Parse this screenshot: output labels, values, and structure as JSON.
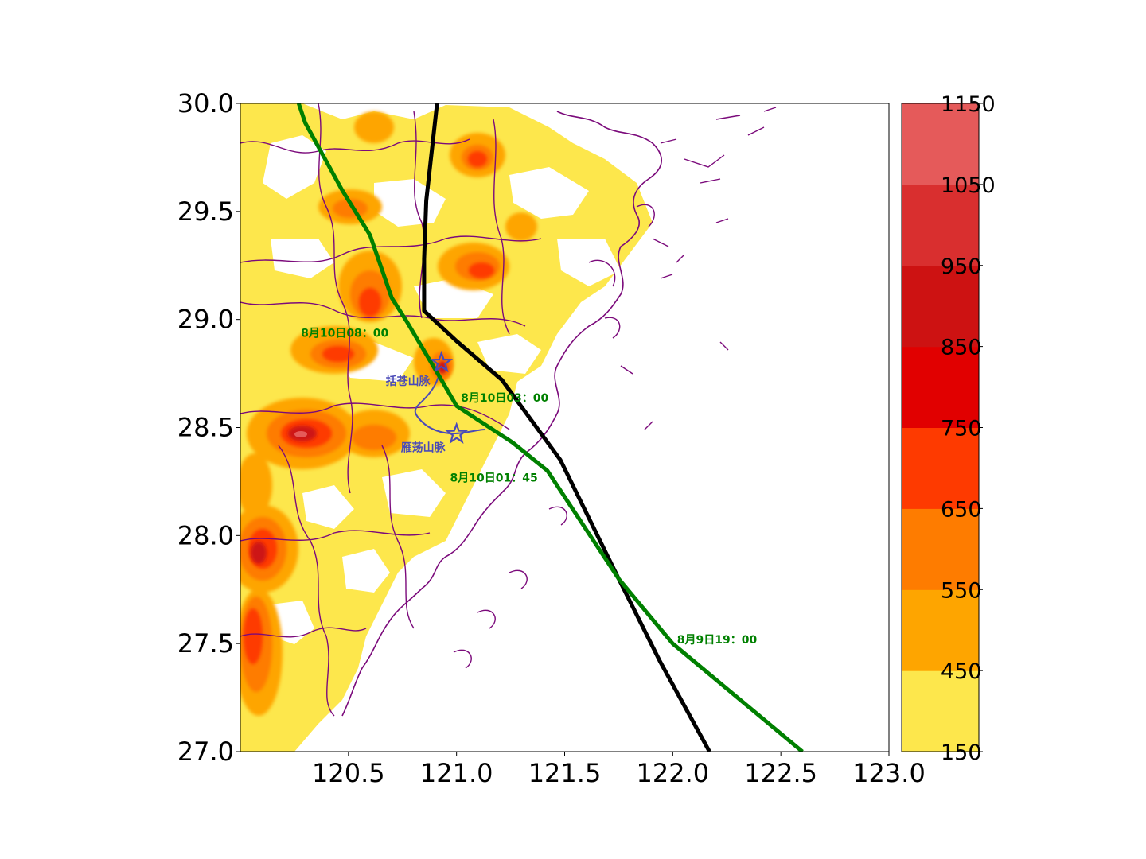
{
  "map": {
    "extent": {
      "lon": [
        120.0,
        123.0
      ],
      "lat": [
        27.0,
        30.0
      ]
    },
    "x_ticks": [
      "120.5",
      "121.0",
      "121.5",
      "122.0",
      "122.5",
      "123.0"
    ],
    "x_tick_values": [
      120.5,
      121.0,
      121.5,
      122.0,
      122.5,
      123.0
    ],
    "y_ticks": [
      "27.0",
      "27.5",
      "28.0",
      "28.5",
      "29.0",
      "29.5",
      "30.0"
    ],
    "y_tick_values": [
      27.0,
      27.5,
      28.0,
      28.5,
      29.0,
      29.5,
      30.0
    ],
    "colorbar": {
      "levels": [
        "150",
        "450",
        "550",
        "650",
        "750",
        "850",
        "950",
        "1050",
        "1150"
      ],
      "colors": [
        "#fde74c",
        "#fea500",
        "#fe7c00",
        "#fe3a00",
        "#e10000",
        "#cd1212",
        "#d92f2f",
        "#e55a5a"
      ]
    },
    "colors": {
      "track_black": "#000000",
      "track_green": "#008000",
      "boundaries": "#7b0a7b",
      "mountain": "#4a4ab8"
    },
    "tracks": {
      "black": [
        [
          120.91,
          30.0
        ],
        [
          120.86,
          29.55
        ],
        [
          120.85,
          29.28
        ],
        [
          120.85,
          29.04
        ],
        [
          121.0,
          28.9
        ],
        [
          121.21,
          28.72
        ],
        [
          121.48,
          28.35
        ],
        [
          121.75,
          27.8
        ],
        [
          121.94,
          27.42
        ],
        [
          122.17,
          27.0
        ]
      ],
      "green": [
        [
          120.27,
          30.0
        ],
        [
          120.3,
          29.91
        ],
        [
          120.47,
          29.6
        ],
        [
          120.6,
          29.39
        ],
        [
          120.7,
          29.1
        ],
        [
          120.77,
          28.99
        ],
        [
          120.93,
          28.72
        ],
        [
          121.0,
          28.6
        ],
        [
          121.26,
          28.43
        ],
        [
          121.42,
          28.3
        ],
        [
          121.75,
          27.8
        ],
        [
          122.0,
          27.5
        ],
        [
          122.6,
          27.0
        ]
      ]
    },
    "mountains": [
      {
        "name": "括苍山脉",
        "lon": 120.93,
        "lat": 28.8
      },
      {
        "name": "雁荡山脉",
        "lon": 121.0,
        "lat": 28.47
      }
    ],
    "annotations": [
      {
        "text": "8月10日08：00",
        "lon": 120.28,
        "lat": 28.92
      },
      {
        "text": "8月10日03：00",
        "lon": 121.02,
        "lat": 28.62
      },
      {
        "text": "8月10日01：45",
        "lon": 120.97,
        "lat": 28.25
      },
      {
        "text": "8月9日19：00",
        "lon": 122.02,
        "lat": 27.5
      }
    ]
  }
}
